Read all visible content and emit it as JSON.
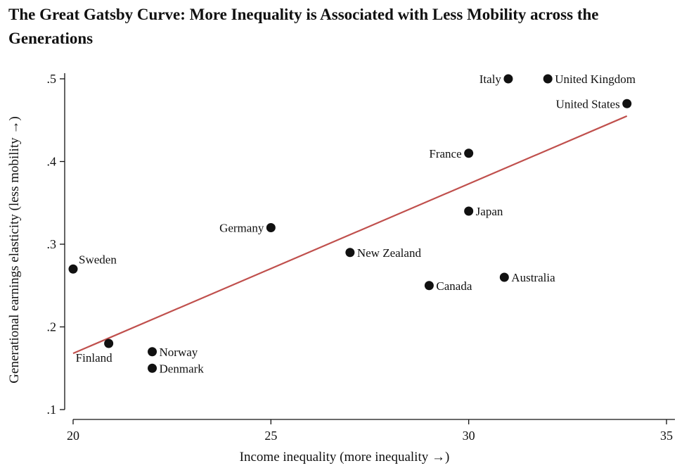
{
  "title": "The Great Gatsby Curve: More Inequality is Associated with Less Mobility across the Generations",
  "chart_data": {
    "type": "scatter",
    "xlabel": "Income inequality (more inequality →)",
    "ylabel": "Generational earnings elasticity (less mobility →)",
    "xlim": [
      20,
      35
    ],
    "ylim": [
      0.1,
      0.5
    ],
    "xticks": [
      20,
      25,
      30,
      35
    ],
    "xtick_labels": [
      "20",
      "25",
      "30",
      "35"
    ],
    "yticks": [
      0.1,
      0.2,
      0.3,
      0.4,
      0.5
    ],
    "ytick_labels": [
      ".1",
      ".2",
      ".3",
      ".4",
      ".5"
    ],
    "points": [
      {
        "label": "Sweden",
        "x": 20.0,
        "y": 0.27,
        "labelpos": "ne"
      },
      {
        "label": "Finland",
        "x": 20.9,
        "y": 0.18,
        "labelpos": "sw"
      },
      {
        "label": "Norway",
        "x": 22.0,
        "y": 0.17,
        "labelpos": "e"
      },
      {
        "label": "Denmark",
        "x": 22.0,
        "y": 0.15,
        "labelpos": "e"
      },
      {
        "label": "Germany",
        "x": 25.0,
        "y": 0.32,
        "labelpos": "w"
      },
      {
        "label": "New Zealand",
        "x": 27.0,
        "y": 0.29,
        "labelpos": "e"
      },
      {
        "label": "Canada",
        "x": 29.0,
        "y": 0.25,
        "labelpos": "e"
      },
      {
        "label": "Japan",
        "x": 30.0,
        "y": 0.34,
        "labelpos": "e"
      },
      {
        "label": "France",
        "x": 30.0,
        "y": 0.41,
        "labelpos": "w"
      },
      {
        "label": "Australia",
        "x": 30.9,
        "y": 0.26,
        "labelpos": "e"
      },
      {
        "label": "Italy",
        "x": 31.0,
        "y": 0.5,
        "labelpos": "w"
      },
      {
        "label": "United Kingdom",
        "x": 32.0,
        "y": 0.5,
        "labelpos": "e"
      },
      {
        "label": "United States",
        "x": 34.0,
        "y": 0.47,
        "labelpos": "w"
      }
    ],
    "fit_line": {
      "x": [
        20.0,
        34.0
      ],
      "y": [
        0.168,
        0.455
      ]
    },
    "colors": {
      "points": "#111111",
      "fit_line": "#c0504d",
      "axis": "#111111"
    },
    "grid": false
  }
}
